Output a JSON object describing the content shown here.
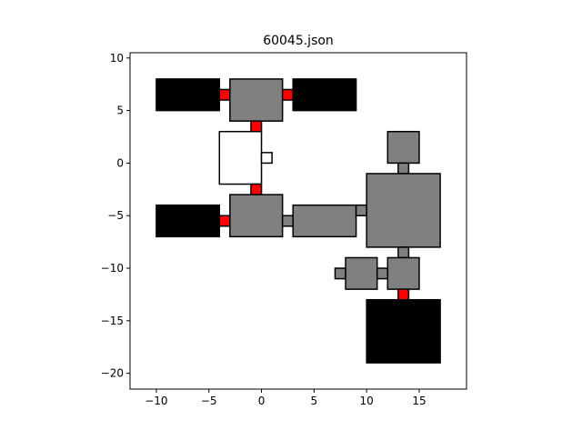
{
  "chart_data": {
    "type": "floorplan-rectangles",
    "title": "60045.json",
    "xlabel": "",
    "ylabel": "",
    "xlim": [
      -12.5,
      19.5
    ],
    "ylim": [
      -21.5,
      10.5
    ],
    "xticks": [
      -10,
      -5,
      0,
      5,
      10,
      15
    ],
    "yticks": [
      10,
      5,
      0,
      -5,
      -10,
      -15,
      -20
    ],
    "tick_labels": {
      "x": [
        "−10",
        "−5",
        "0",
        "5",
        "10",
        "15"
      ],
      "y": [
        "10",
        "5",
        "0",
        "−5",
        "−10",
        "−15",
        "−20"
      ]
    },
    "grid": false,
    "colors": {
      "black": "#000000",
      "gray": "#808080",
      "red": "#ff0000",
      "white": "#ffffff",
      "edge": "#000000"
    },
    "rects": [
      {
        "name": "black-room-top-left",
        "x": -10,
        "y": 5,
        "w": 6,
        "h": 3,
        "fill": "black"
      },
      {
        "name": "red-door-top-left",
        "x": -4,
        "y": 6,
        "w": 1,
        "h": 1,
        "fill": "red"
      },
      {
        "name": "gray-room-top",
        "x": -3,
        "y": 4,
        "w": 5,
        "h": 4,
        "fill": "gray"
      },
      {
        "name": "red-door-top-right",
        "x": 2,
        "y": 6,
        "w": 1,
        "h": 1,
        "fill": "red"
      },
      {
        "name": "black-room-top-right",
        "x": 3,
        "y": 5,
        "w": 6,
        "h": 3,
        "fill": "black"
      },
      {
        "name": "red-door-upper-center",
        "x": -1,
        "y": 3,
        "w": 1,
        "h": 1,
        "fill": "red"
      },
      {
        "name": "white-room-center",
        "x": -4,
        "y": -2,
        "w": 4,
        "h": 5,
        "fill": "white"
      },
      {
        "name": "white-door-center",
        "x": 0,
        "y": 0,
        "w": 1,
        "h": 1,
        "fill": "white"
      },
      {
        "name": "red-door-lower-center",
        "x": -1,
        "y": -3,
        "w": 1,
        "h": 1,
        "fill": "red"
      },
      {
        "name": "black-room-mid-left",
        "x": -10,
        "y": -7,
        "w": 6,
        "h": 3,
        "fill": "black"
      },
      {
        "name": "red-door-mid-left",
        "x": -4,
        "y": -6,
        "w": 1,
        "h": 1,
        "fill": "red"
      },
      {
        "name": "gray-room-mid",
        "x": -3,
        "y": -7,
        "w": 5,
        "h": 4,
        "fill": "gray"
      },
      {
        "name": "gray-door-mid",
        "x": 2,
        "y": -6,
        "w": 1,
        "h": 1,
        "fill": "gray"
      },
      {
        "name": "gray-room-hall",
        "x": 3,
        "y": -7,
        "w": 6,
        "h": 3,
        "fill": "gray"
      },
      {
        "name": "gray-door-hall-right",
        "x": 9,
        "y": -5,
        "w": 1,
        "h": 1,
        "fill": "gray"
      },
      {
        "name": "gray-room-top-small",
        "x": 12,
        "y": 0,
        "w": 3,
        "h": 3,
        "fill": "gray"
      },
      {
        "name": "gray-door-top-small",
        "x": 13,
        "y": -1,
        "w": 1,
        "h": 1,
        "fill": "gray"
      },
      {
        "name": "gray-room-large",
        "x": 10,
        "y": -8,
        "w": 7,
        "h": 7,
        "fill": "gray"
      },
      {
        "name": "gray-door-large-bottom",
        "x": 13,
        "y": -9,
        "w": 1,
        "h": 1,
        "fill": "gray"
      },
      {
        "name": "gray-door-far-left",
        "x": 7,
        "y": -11,
        "w": 1,
        "h": 1,
        "fill": "gray"
      },
      {
        "name": "gray-room-small-left",
        "x": 8,
        "y": -12,
        "w": 3,
        "h": 3,
        "fill": "gray"
      },
      {
        "name": "gray-door-small-mid",
        "x": 11,
        "y": -11,
        "w": 1,
        "h": 1,
        "fill": "gray"
      },
      {
        "name": "gray-room-small-right",
        "x": 12,
        "y": -12,
        "w": 3,
        "h": 3,
        "fill": "gray"
      },
      {
        "name": "red-door-bottom",
        "x": 13,
        "y": -13,
        "w": 1,
        "h": 1,
        "fill": "red"
      },
      {
        "name": "black-room-bottom",
        "x": 10,
        "y": -19,
        "w": 7,
        "h": 6,
        "fill": "black"
      }
    ]
  }
}
